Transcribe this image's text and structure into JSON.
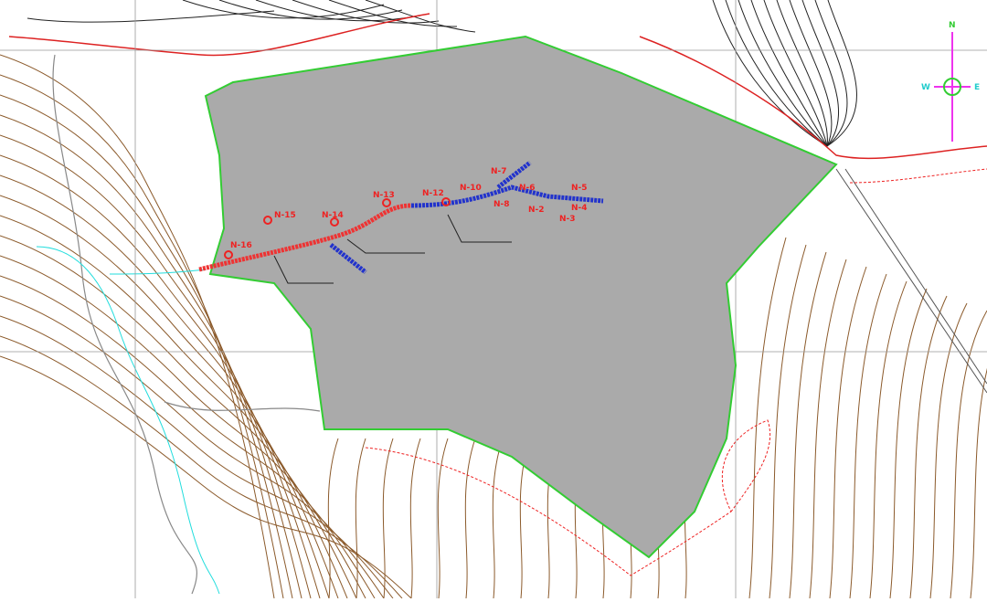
{
  "compass": {
    "north": "N",
    "west": "W",
    "east": "E"
  },
  "nodes": [
    {
      "label": "N-16"
    },
    {
      "label": "N-15"
    },
    {
      "label": "N-14"
    },
    {
      "label": "N-13"
    },
    {
      "label": "N-12"
    },
    {
      "label": "N-10"
    },
    {
      "label": "N-7"
    },
    {
      "label": "N-8"
    },
    {
      "label": "N-2"
    },
    {
      "label": "N-6"
    },
    {
      "label": "N-5"
    },
    {
      "label": "N-4"
    },
    {
      "label": "N-3"
    }
  ]
}
